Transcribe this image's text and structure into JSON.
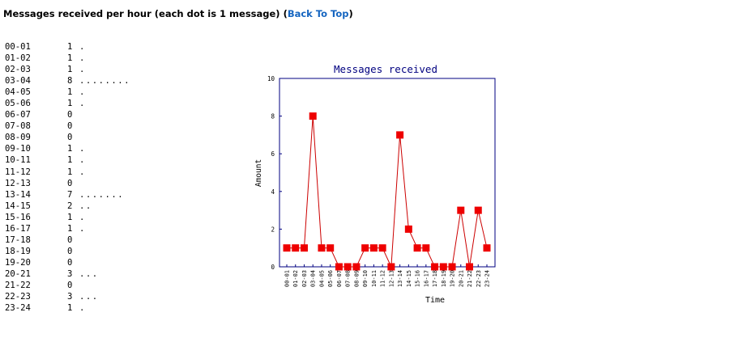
{
  "heading": {
    "text": "Messages received per hour (each dot is 1 message) (",
    "link": "Back To Top",
    "suffix": ")"
  },
  "rows": [
    {
      "hour": "00-01",
      "count": "1",
      "dots": "."
    },
    {
      "hour": "01-02",
      "count": "1",
      "dots": "."
    },
    {
      "hour": "02-03",
      "count": "1",
      "dots": "."
    },
    {
      "hour": "03-04",
      "count": "8",
      "dots": "........"
    },
    {
      "hour": "04-05",
      "count": "1",
      "dots": "."
    },
    {
      "hour": "05-06",
      "count": "1",
      "dots": "."
    },
    {
      "hour": "06-07",
      "count": "0",
      "dots": ""
    },
    {
      "hour": "07-08",
      "count": "0",
      "dots": ""
    },
    {
      "hour": "08-09",
      "count": "0",
      "dots": ""
    },
    {
      "hour": "09-10",
      "count": "1",
      "dots": "."
    },
    {
      "hour": "10-11",
      "count": "1",
      "dots": "."
    },
    {
      "hour": "11-12",
      "count": "1",
      "dots": "."
    },
    {
      "hour": "12-13",
      "count": "0",
      "dots": ""
    },
    {
      "hour": "13-14",
      "count": "7",
      "dots": "......."
    },
    {
      "hour": "14-15",
      "count": "2",
      "dots": ".."
    },
    {
      "hour": "15-16",
      "count": "1",
      "dots": "."
    },
    {
      "hour": "16-17",
      "count": "1",
      "dots": "."
    },
    {
      "hour": "17-18",
      "count": "0",
      "dots": ""
    },
    {
      "hour": "18-19",
      "count": "0",
      "dots": ""
    },
    {
      "hour": "19-20",
      "count": "0",
      "dots": ""
    },
    {
      "hour": "20-21",
      "count": "3",
      "dots": "..."
    },
    {
      "hour": "21-22",
      "count": "0",
      "dots": ""
    },
    {
      "hour": "22-23",
      "count": "3",
      "dots": "..."
    },
    {
      "hour": "23-24",
      "count": "1",
      "dots": "."
    }
  ],
  "chart_data": {
    "type": "line",
    "title": "Messages received",
    "xlabel": "Time",
    "ylabel": "Amount",
    "ylim": [
      0,
      10
    ],
    "yticks": [
      0,
      2,
      4,
      6,
      8,
      10
    ],
    "categories": [
      "00-01",
      "01-02",
      "02-03",
      "03-04",
      "04-05",
      "05-06",
      "06-07",
      "07-08",
      "08-09",
      "09-10",
      "10-11",
      "11-12",
      "12-13",
      "13-14",
      "14-15",
      "15-16",
      "16-17",
      "17-18",
      "18-19",
      "19-20",
      "20-21",
      "21-22",
      "22-23",
      "23-24"
    ],
    "series": [
      {
        "values": [
          1,
          1,
          1,
          8,
          1,
          1,
          0,
          0,
          0,
          1,
          1,
          1,
          0,
          7,
          2,
          1,
          1,
          0,
          0,
          0,
          3,
          0,
          3,
          1
        ]
      }
    ],
    "grid": false,
    "colors": {
      "line": "#cc0000",
      "marker": "#ee0000",
      "frame": "#000080",
      "title": "#000080"
    }
  }
}
